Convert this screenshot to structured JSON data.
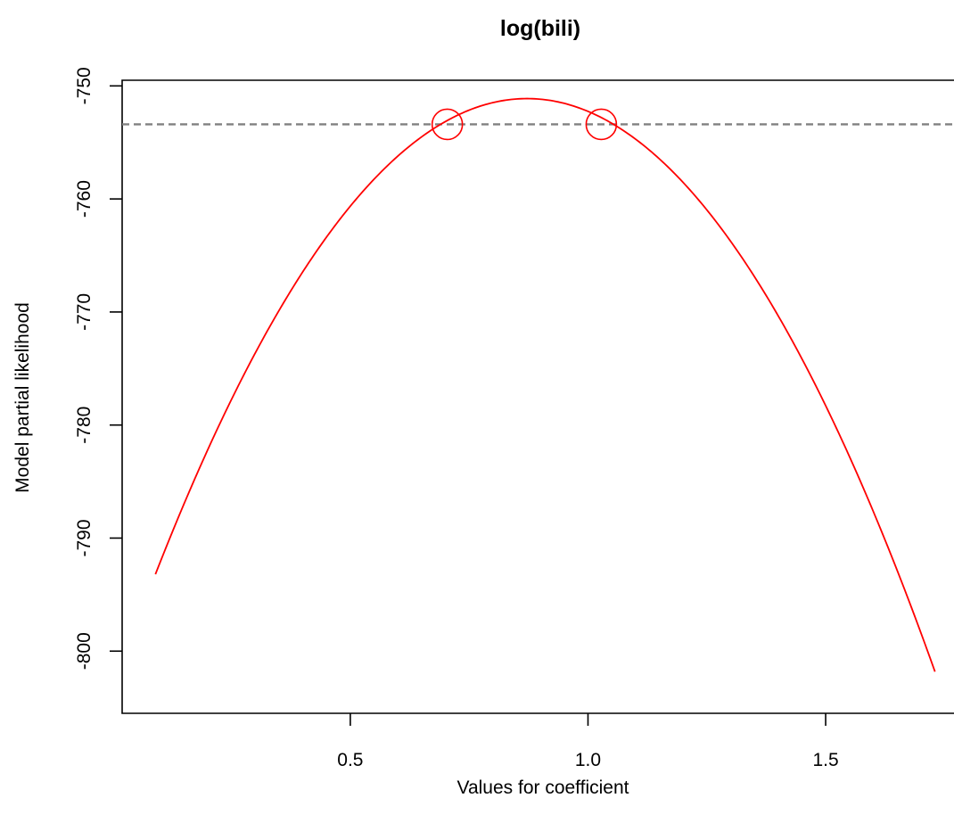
{
  "chart_data": {
    "type": "line",
    "title": "log(bili)",
    "xlabel": "Values for coefficient",
    "ylabel": "Model partial likelihood",
    "xlim": [
      0.02,
      1.77
    ],
    "ylim": [
      -805.5,
      -749.5
    ],
    "x_ticks": [
      {
        "value": 0.5,
        "label": "0.5"
      },
      {
        "value": 1.0,
        "label": "1.0"
      },
      {
        "value": 1.5,
        "label": "1.5"
      }
    ],
    "y_ticks": [
      {
        "value": -750,
        "label": "-750"
      },
      {
        "value": -760,
        "label": "-760"
      },
      {
        "value": -770,
        "label": "-770"
      },
      {
        "value": -780,
        "label": "-780"
      },
      {
        "value": -790,
        "label": "-790"
      },
      {
        "value": -800,
        "label": "-800"
      }
    ],
    "grid": false,
    "series": [
      {
        "color": "#ff0000",
        "style": "solid",
        "x": [
          0.09,
          0.2,
          0.3,
          0.4,
          0.5,
          0.6,
          0.7,
          0.8,
          0.87,
          0.95,
          1.03,
          1.1,
          1.2,
          1.3,
          1.4,
          1.5,
          1.6,
          1.73
        ],
        "y": [
          -793.9,
          -782.2,
          -773.3,
          -765.9,
          -760.0,
          -755.7,
          -753.1,
          -751.8,
          -751.7,
          -752.1,
          -753.4,
          -755.1,
          -758.8,
          -763.7,
          -769.9,
          -777.4,
          -786.2,
          -803.3
        ]
      }
    ],
    "reference_line": {
      "orientation": "horizontal",
      "y": -753.4,
      "color": "#808080",
      "style": "dashed"
    },
    "markers": [
      {
        "x": 0.704,
        "y": -753.4,
        "shape": "open-circle",
        "color": "#ff0000"
      },
      {
        "x": 1.028,
        "y": -753.4,
        "shape": "open-circle",
        "color": "#ff0000"
      }
    ]
  }
}
